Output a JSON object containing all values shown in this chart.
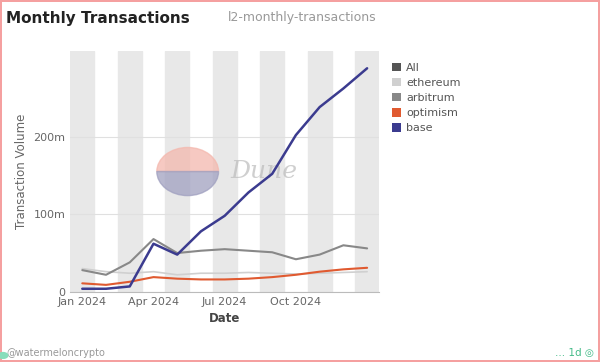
{
  "title": "Monthly Transactions",
  "subtitle": "l2-monthly-transactions",
  "xlabel": "Date",
  "ylabel": "Transaction Volume",
  "watermark": "@watermeloncrypto",
  "dune_text": "Dune",
  "background_color": "#ffffff",
  "plot_bg_color": "#ffffff",
  "figure_border_color": "#f5a0a0",
  "x_labels": [
    "Jan 2024",
    "Apr 2024",
    "Jul 2024",
    "Oct 2024"
  ],
  "x_positions": [
    0,
    3,
    6,
    9
  ],
  "months": 13,
  "series": {
    "ethereum": {
      "color": "#d0d0d0",
      "values": [
        30,
        26,
        24,
        26,
        22,
        24,
        24,
        25,
        24,
        23,
        24,
        25,
        26
      ]
    },
    "arbitrum": {
      "color": "#888888",
      "values": [
        28,
        22,
        38,
        68,
        50,
        53,
        55,
        53,
        51,
        42,
        48,
        60,
        56
      ]
    },
    "optimism": {
      "color": "#e05a30",
      "values": [
        11,
        9,
        13,
        19,
        17,
        16,
        16,
        17,
        19,
        22,
        26,
        29,
        31
      ]
    },
    "base": {
      "color": "#3b3b8f",
      "values": [
        4,
        4,
        7,
        62,
        48,
        78,
        98,
        128,
        152,
        202,
        238,
        262,
        288
      ]
    }
  },
  "ylim": [
    0,
    310
  ],
  "yticks": [
    0,
    100,
    200
  ],
  "ytick_labels": [
    "0",
    "100m",
    "200m"
  ],
  "alt_bands_color": "#e8e8e8",
  "legend_labels": [
    "All",
    "ethereum",
    "arbitrum",
    "optimism",
    "base"
  ],
  "legend_colors": [
    "#555555",
    "#d0d0d0",
    "#888888",
    "#e05a30",
    "#3b3b8f"
  ],
  "title_fontsize": 11,
  "subtitle_fontsize": 9,
  "axis_label_fontsize": 8.5,
  "tick_fontsize": 8,
  "legend_fontsize": 8
}
